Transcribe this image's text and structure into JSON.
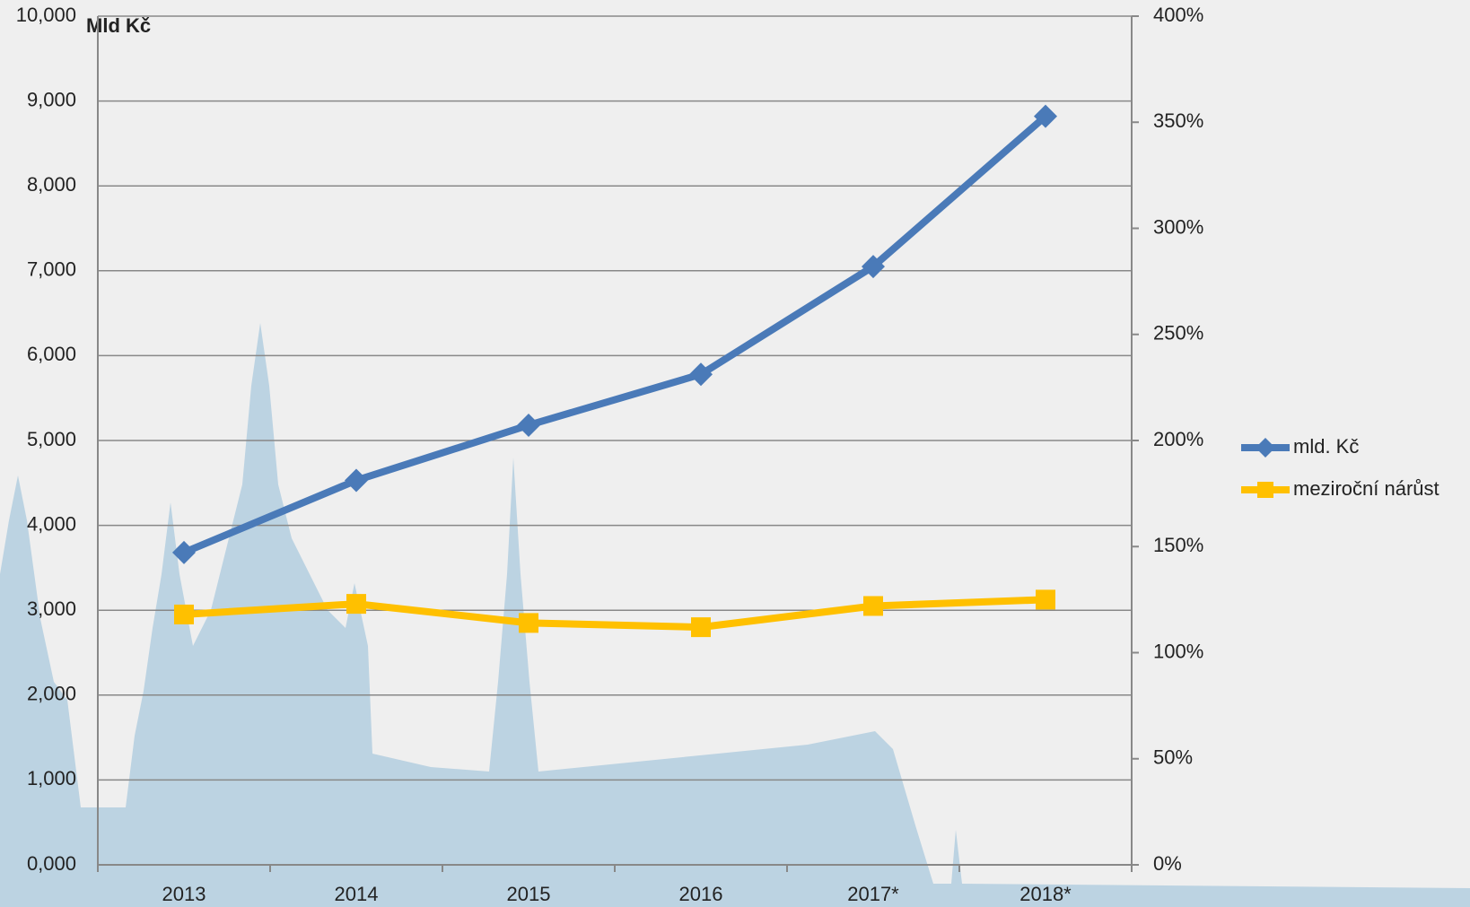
{
  "chart_data": {
    "type": "line",
    "y_label": "Mld Kč",
    "categories": [
      "2013",
      "2014",
      "2015",
      "2016",
      "2017*",
      "2018*"
    ],
    "series": [
      {
        "name": "mld. Kč",
        "color": "#4a7ab8",
        "marker": "diamond",
        "values": [
          3680,
          4530,
          5180,
          5780,
          7050,
          8820
        ]
      },
      {
        "name": "meziroční nárůst",
        "color": "#ffc000",
        "marker": "square",
        "axis": "y2",
        "values": [
          118,
          123,
          114,
          112,
          122,
          125
        ]
      }
    ],
    "ylim": [
      0,
      10000
    ],
    "yticks": [
      {
        "value": 0,
        "label": "0,000"
      },
      {
        "value": 1000,
        "label": "1,000"
      },
      {
        "value": 2000,
        "label": "2,000"
      },
      {
        "value": 3000,
        "label": "3,000"
      },
      {
        "value": 4000,
        "label": "4,000"
      },
      {
        "value": 5000,
        "label": "5,000"
      },
      {
        "value": 6000,
        "label": "6,000"
      },
      {
        "value": 7000,
        "label": "7,000"
      },
      {
        "value": 8000,
        "label": "8,000"
      },
      {
        "value": 9000,
        "label": "9,000"
      },
      {
        "value": 10000,
        "label": "10,000"
      }
    ],
    "y2lim": [
      0,
      400
    ],
    "y2ticks": [
      {
        "value": 0,
        "label": "0%"
      },
      {
        "value": 50,
        "label": "50%"
      },
      {
        "value": 100,
        "label": "100%"
      },
      {
        "value": 150,
        "label": "150%"
      },
      {
        "value": 200,
        "label": "200%"
      },
      {
        "value": 250,
        "label": "250%"
      },
      {
        "value": 300,
        "label": "300%"
      },
      {
        "value": 350,
        "label": "350%"
      },
      {
        "value": 400,
        "label": "400%"
      }
    ],
    "grid": true,
    "legend": "right"
  }
}
